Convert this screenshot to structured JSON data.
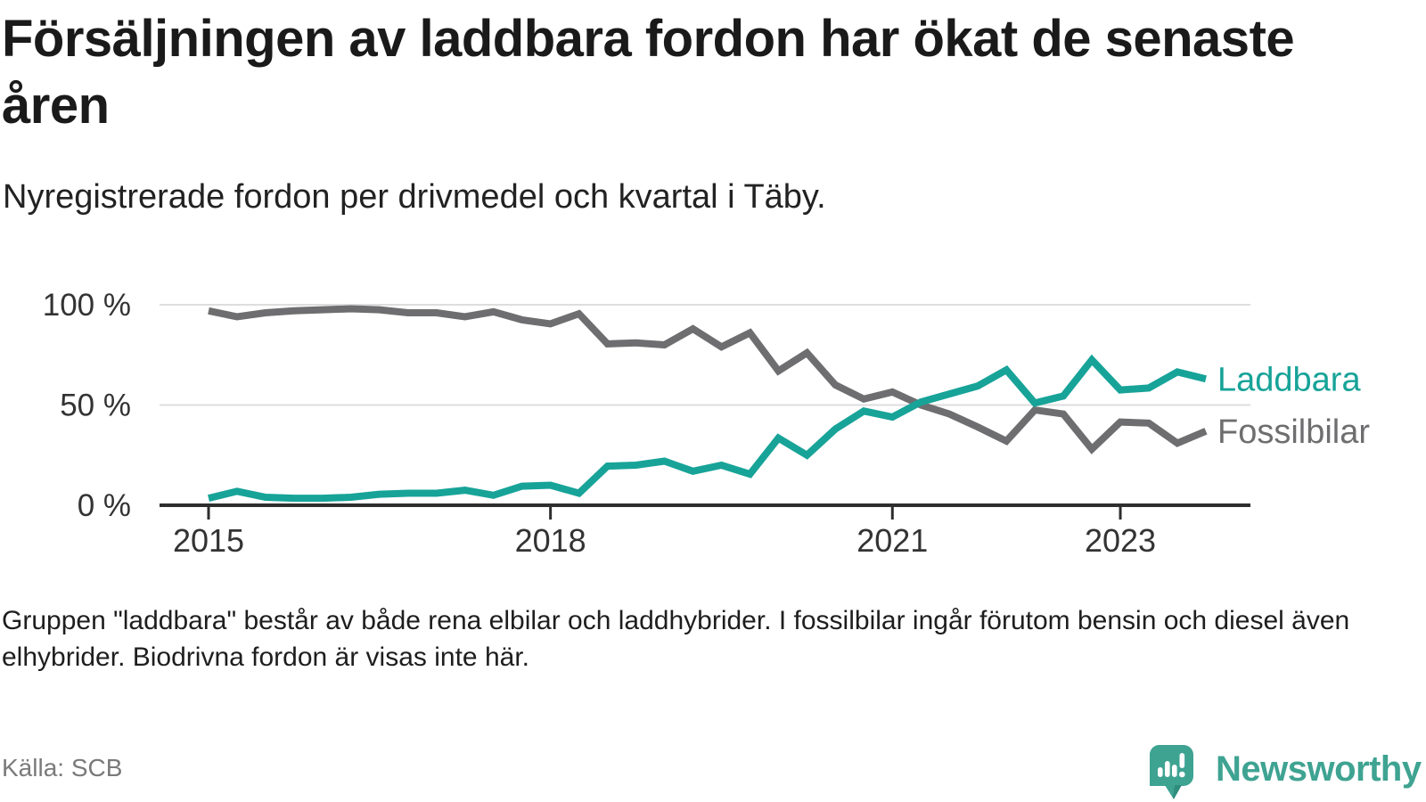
{
  "header": {
    "title": "Försäljningen av laddbara fordon har ökat de senaste åren",
    "subtitle": "Nyregistrerade fordon per drivmedel och kvartal i Täby."
  },
  "chart_data": {
    "type": "line",
    "title": "Försäljningen av laddbara fordon har ökat de senaste åren",
    "subtitle": "Nyregistrerade fordon per drivmedel och kvartal i Täby.",
    "x": {
      "start": "2015-Q1",
      "end": "2023-Q4",
      "step": "quarter",
      "n_points": 36
    },
    "ylim": [
      0,
      100
    ],
    "unit": "%",
    "grid": "horizontal",
    "legend_position": "right-of-line-ends",
    "yticks": [
      {
        "value": 100,
        "label": "100 %"
      },
      {
        "value": 50,
        "label": "50 %"
      },
      {
        "value": 0,
        "label": "0 %"
      }
    ],
    "xticks": [
      {
        "year": 2015,
        "label": "2015"
      },
      {
        "year": 2018,
        "label": "2018"
      },
      {
        "year": 2021,
        "label": "2021"
      },
      {
        "year": 2023,
        "label": "2023"
      }
    ],
    "series": [
      {
        "name": "Laddbara",
        "color": "#17a398",
        "values": [
          3.5,
          7,
          4,
          3.5,
          3.5,
          4,
          5.5,
          6,
          6,
          7.5,
          5,
          9.5,
          10,
          6,
          19.5,
          20,
          22,
          17,
          20,
          15.5,
          33.5,
          25,
          38,
          47,
          44,
          51.5,
          55.5,
          59.5,
          67.5,
          51,
          54.5,
          72.5,
          57.5,
          58.5,
          66.5,
          63
        ]
      },
      {
        "name": "Fossilbilar",
        "color": "#6e6e70",
        "values": [
          97,
          94,
          96,
          97,
          97.5,
          98,
          97.5,
          96,
          96,
          94,
          96.5,
          92.5,
          90.5,
          95.5,
          80.5,
          81,
          80,
          88,
          79,
          86,
          67,
          76,
          60,
          53,
          56.5,
          50,
          45.5,
          39,
          32,
          47.5,
          45.5,
          28,
          41.5,
          41,
          31,
          37
        ]
      }
    ]
  },
  "footnote": {
    "text": "Gruppen \"laddbara\" består av både rena elbilar och laddhybrider. I fossilbilar ingår förutom bensin och diesel även elhybrider. Biodrivna fordon är visas inte här."
  },
  "source": {
    "label": "Källa: SCB"
  },
  "branding": {
    "wordmark": "Newsworthy"
  },
  "colors": {
    "accent_teal": "#17a398",
    "line_gray": "#6e6e70",
    "logo_teal": "#3fa392",
    "logo_teal_dark": "#2f8d7e",
    "text_dark": "#1a1a1a",
    "text_medium": "#333333",
    "text_source": "#7a7a7a",
    "gridline": "#dddddd",
    "axis": "#2e2e2e"
  }
}
